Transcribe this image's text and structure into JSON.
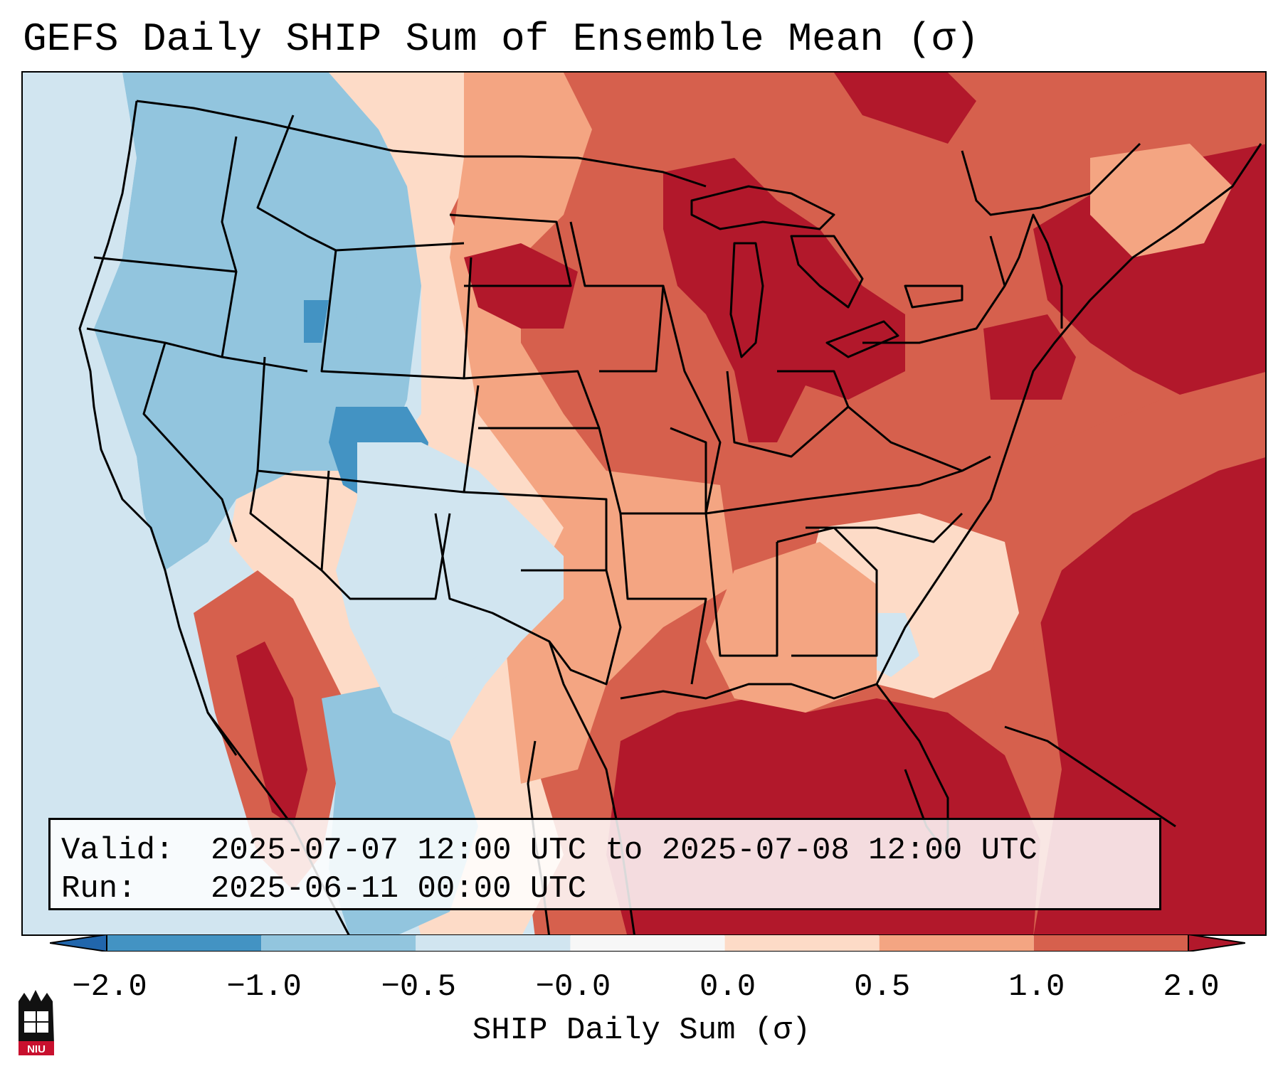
{
  "title": "GEFS Daily SHIP Sum of Ensemble Mean (σ)",
  "info": {
    "valid_label": "Valid:",
    "valid_value": "2025-07-07 12:00 UTC to 2025-07-08 12:00 UTC",
    "run_label": "Run:",
    "run_value": "2025-06-11 00:00 UTC"
  },
  "colorbar": {
    "label": "SHIP Daily Sum (σ)",
    "ticks": [
      "−2.0",
      "−1.0",
      "−0.5",
      "−0.0",
      "0.0",
      "0.5",
      "1.0",
      "2.0"
    ],
    "colors": [
      "#4393c3",
      "#92c5de",
      "#d1e5f0",
      "#f7f7f7",
      "#fddbc7",
      "#f4a582",
      "#d6604d"
    ],
    "under_color": "#2166ac",
    "over_color": "#b2182b"
  },
  "map": {
    "projection": "Lambert conformal, CONUS",
    "palette": {
      "strong_neg": "#4393c3",
      "mod_neg": "#92c5de",
      "weak_neg": "#d1e5f0",
      "weak_pos": "#fddbc7",
      "mod_pos": "#f4a582",
      "pos": "#d6604d",
      "strong_pos": "#b2182b"
    }
  },
  "logo": {
    "text": "NIU",
    "name": "niu-logo"
  }
}
